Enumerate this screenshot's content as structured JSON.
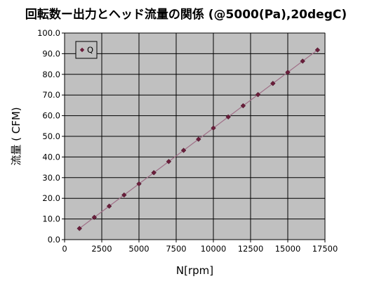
{
  "chart_data": {
    "type": "scatter",
    "title": "回転数ー出力とヘッド流量の関係 (@5000(Pa),20degC)",
    "xlabel": "N[rpm]",
    "ylabel": "流量 ( CFM)",
    "xlim": [
      0,
      17500
    ],
    "ylim": [
      0,
      100
    ],
    "x_ticks": [
      0,
      2500,
      5000,
      7500,
      10000,
      12500,
      15000,
      17500
    ],
    "x_tick_labels": [
      "0",
      "2500",
      "5000",
      "7500",
      "10000",
      "12500",
      "15000",
      "17500"
    ],
    "y_ticks": [
      0,
      10,
      20,
      30,
      40,
      50,
      60,
      70,
      80,
      90,
      100
    ],
    "y_tick_labels": [
      "0.0",
      "10.0",
      "20.0",
      "30.0",
      "40.0",
      "50.0",
      "60.0",
      "70.0",
      "80.0",
      "90.0",
      "100.0"
    ],
    "grid": true,
    "legend_position": "top-left",
    "series": [
      {
        "name": "Q",
        "marker": "diamond",
        "color": "#6b1e3b",
        "line_color": "#a07088",
        "x": [
          1000,
          2000,
          3000,
          4000,
          5000,
          6000,
          7000,
          8000,
          9000,
          10000,
          11000,
          12000,
          13000,
          14000,
          15000,
          16000,
          17000
        ],
        "y": [
          5.4,
          10.8,
          16.2,
          21.6,
          27.0,
          32.4,
          37.8,
          43.2,
          48.6,
          54.0,
          59.4,
          64.8,
          70.2,
          75.6,
          81.0,
          86.4,
          91.8
        ]
      }
    ],
    "plot_background": "#c0c0c0",
    "grid_color": "#000000"
  }
}
